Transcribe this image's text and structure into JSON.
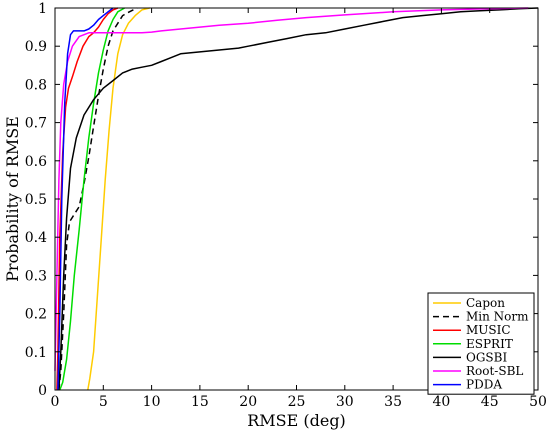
{
  "chart_data": {
    "type": "line",
    "xlabel": "RMSE (deg)",
    "ylabel": "Probability of RMSE",
    "xlim": [
      0,
      50
    ],
    "ylim": [
      0,
      1
    ],
    "xticks": [
      0,
      5,
      10,
      15,
      20,
      25,
      30,
      35,
      40,
      45,
      50
    ],
    "yticks": [
      0,
      0.1,
      0.2,
      0.3,
      0.4,
      0.5,
      0.6,
      0.7,
      0.8,
      0.9,
      1
    ],
    "grid": false,
    "legend_position": "bottom-right",
    "series": [
      {
        "name": "Capon",
        "color": "#ffcc00",
        "dash": "solid",
        "points": [
          [
            3.4,
            0
          ],
          [
            3.6,
            0.03
          ],
          [
            4.0,
            0.1
          ],
          [
            4.4,
            0.25
          ],
          [
            4.8,
            0.4
          ],
          [
            5.2,
            0.55
          ],
          [
            5.6,
            0.68
          ],
          [
            6.0,
            0.79
          ],
          [
            6.5,
            0.88
          ],
          [
            7.0,
            0.93
          ],
          [
            7.6,
            0.96
          ],
          [
            8.3,
            0.98
          ],
          [
            9.0,
            0.995
          ],
          [
            9.8,
            1.0
          ]
        ]
      },
      {
        "name": "Min Norm",
        "color": "#000000",
        "dash": "dashed",
        "points": [
          [
            0.4,
            0
          ],
          [
            0.6,
            0.05
          ],
          [
            0.9,
            0.2
          ],
          [
            1.2,
            0.38
          ],
          [
            1.5,
            0.44
          ],
          [
            2.0,
            0.46
          ],
          [
            2.5,
            0.48
          ],
          [
            3.0,
            0.54
          ],
          [
            3.5,
            0.61
          ],
          [
            4.0,
            0.69
          ],
          [
            4.5,
            0.77
          ],
          [
            5.0,
            0.84
          ],
          [
            5.5,
            0.9
          ],
          [
            6.0,
            0.94
          ],
          [
            6.5,
            0.96
          ],
          [
            7.0,
            0.98
          ],
          [
            7.7,
            0.99
          ],
          [
            8.5,
            1.0
          ]
        ]
      },
      {
        "name": "MUSIC",
        "color": "#ff0000",
        "dash": "solid",
        "points": [
          [
            0.2,
            0
          ],
          [
            0.3,
            0.1
          ],
          [
            0.5,
            0.4
          ],
          [
            0.8,
            0.62
          ],
          [
            1.1,
            0.74
          ],
          [
            1.4,
            0.79
          ],
          [
            1.8,
            0.82
          ],
          [
            2.3,
            0.86
          ],
          [
            2.9,
            0.9
          ],
          [
            3.5,
            0.925
          ],
          [
            4.0,
            0.935
          ],
          [
            4.5,
            0.95
          ],
          [
            5.0,
            0.97
          ],
          [
            5.5,
            0.985
          ],
          [
            6.0,
            0.995
          ],
          [
            6.5,
            1.0
          ]
        ]
      },
      {
        "name": "ESPRIT",
        "color": "#00dd00",
        "dash": "solid",
        "points": [
          [
            0.5,
            0
          ],
          [
            0.8,
            0.02
          ],
          [
            1.2,
            0.08
          ],
          [
            1.6,
            0.18
          ],
          [
            2.0,
            0.3
          ],
          [
            2.5,
            0.42
          ],
          [
            3.0,
            0.55
          ],
          [
            3.5,
            0.66
          ],
          [
            4.0,
            0.75
          ],
          [
            4.5,
            0.83
          ],
          [
            5.0,
            0.89
          ],
          [
            5.5,
            0.94
          ],
          [
            6.0,
            0.97
          ],
          [
            6.5,
            0.99
          ],
          [
            7.2,
            1.0
          ]
        ]
      },
      {
        "name": "OGSBI",
        "color": "#000000",
        "dash": "solid",
        "points": [
          [
            0.4,
            0
          ],
          [
            0.6,
            0.1
          ],
          [
            0.9,
            0.3
          ],
          [
            1.2,
            0.45
          ],
          [
            1.6,
            0.58
          ],
          [
            2.2,
            0.66
          ],
          [
            3.0,
            0.72
          ],
          [
            4.0,
            0.76
          ],
          [
            5.0,
            0.79
          ],
          [
            6.0,
            0.81
          ],
          [
            7.0,
            0.83
          ],
          [
            8.0,
            0.84
          ],
          [
            9.0,
            0.845
          ],
          [
            10.0,
            0.85
          ],
          [
            11.0,
            0.86
          ],
          [
            12.0,
            0.87
          ],
          [
            13.0,
            0.88
          ],
          [
            15.0,
            0.885
          ],
          [
            17.0,
            0.89
          ],
          [
            19.0,
            0.895
          ],
          [
            20.0,
            0.9
          ],
          [
            22.0,
            0.91
          ],
          [
            24.0,
            0.92
          ],
          [
            26.0,
            0.93
          ],
          [
            28.0,
            0.935
          ],
          [
            30.0,
            0.945
          ],
          [
            32.0,
            0.955
          ],
          [
            34.0,
            0.965
          ],
          [
            36.0,
            0.975
          ],
          [
            38.0,
            0.98
          ],
          [
            40.0,
            0.985
          ],
          [
            42.0,
            0.99
          ],
          [
            44.0,
            0.993
          ],
          [
            46.0,
            0.995
          ],
          [
            48.0,
            0.998
          ],
          [
            50.0,
            1.0
          ]
        ]
      },
      {
        "name": "Root-SBL",
        "color": "#ff00ff",
        "dash": "solid",
        "points": [
          [
            0,
            0.05
          ],
          [
            0.2,
            0.3
          ],
          [
            0.4,
            0.55
          ],
          [
            0.6,
            0.7
          ],
          [
            0.9,
            0.8
          ],
          [
            1.3,
            0.86
          ],
          [
            1.8,
            0.9
          ],
          [
            2.5,
            0.925
          ],
          [
            3.5,
            0.935
          ],
          [
            5.0,
            0.935
          ],
          [
            7.0,
            0.935
          ],
          [
            9.0,
            0.935
          ],
          [
            10.0,
            0.937
          ],
          [
            11.0,
            0.94
          ],
          [
            13.0,
            0.945
          ],
          [
            15.0,
            0.95
          ],
          [
            17.0,
            0.955
          ],
          [
            20.0,
            0.96
          ],
          [
            23.0,
            0.968
          ],
          [
            26.0,
            0.975
          ],
          [
            30.0,
            0.982
          ],
          [
            35.0,
            0.99
          ],
          [
            40.0,
            0.995
          ],
          [
            45.0,
            0.998
          ],
          [
            49.0,
            1.0
          ]
        ]
      },
      {
        "name": "PDDA",
        "color": "#0000ff",
        "dash": "solid",
        "points": [
          [
            0.3,
            0
          ],
          [
            0.5,
            0.2
          ],
          [
            0.7,
            0.5
          ],
          [
            1.0,
            0.75
          ],
          [
            1.3,
            0.88
          ],
          [
            1.6,
            0.93
          ],
          [
            1.9,
            0.94
          ],
          [
            2.5,
            0.94
          ],
          [
            3.0,
            0.94
          ],
          [
            3.5,
            0.945
          ],
          [
            4.0,
            0.955
          ],
          [
            4.5,
            0.97
          ],
          [
            5.0,
            0.98
          ],
          [
            5.5,
            0.99
          ],
          [
            6.0,
            1.0
          ]
        ]
      }
    ]
  }
}
